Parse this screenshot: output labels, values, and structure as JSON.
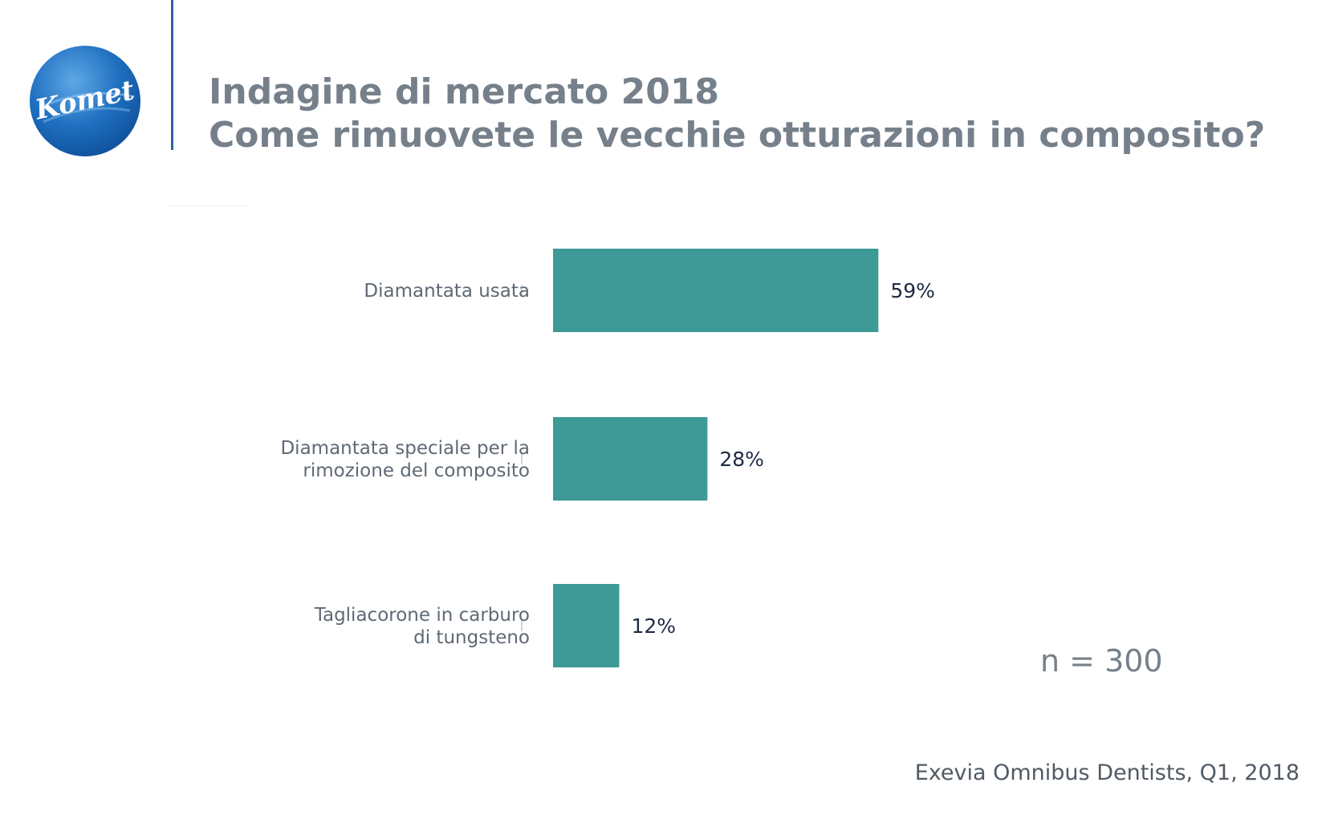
{
  "logo": {
    "text": "Komet"
  },
  "header": {
    "title_line1": "Indagine di mercato 2018",
    "title_line2": "Come rimuovete le vecchie otturazioni in composito?"
  },
  "sample_size": "n = 300",
  "source": "Exevia Omnibus Dentists, Q1, 2018",
  "colors": {
    "bar": "#3d9a96",
    "divider": "#2f62a8",
    "title": "#76808a"
  },
  "chart_data": {
    "type": "bar",
    "orientation": "horizontal",
    "title": "",
    "xlabel": "",
    "ylabel": "",
    "xlim": [
      0,
      100
    ],
    "grid": false,
    "categories": [
      [
        "Diamantata usata"
      ],
      [
        "Diamantata speciale per la",
        "rimozione del composito"
      ],
      [
        "Tagliacorone in carburo",
        "di tungsteno"
      ]
    ],
    "values": [
      59,
      28,
      12
    ],
    "value_labels": [
      "59%",
      "28%",
      "12%"
    ]
  }
}
